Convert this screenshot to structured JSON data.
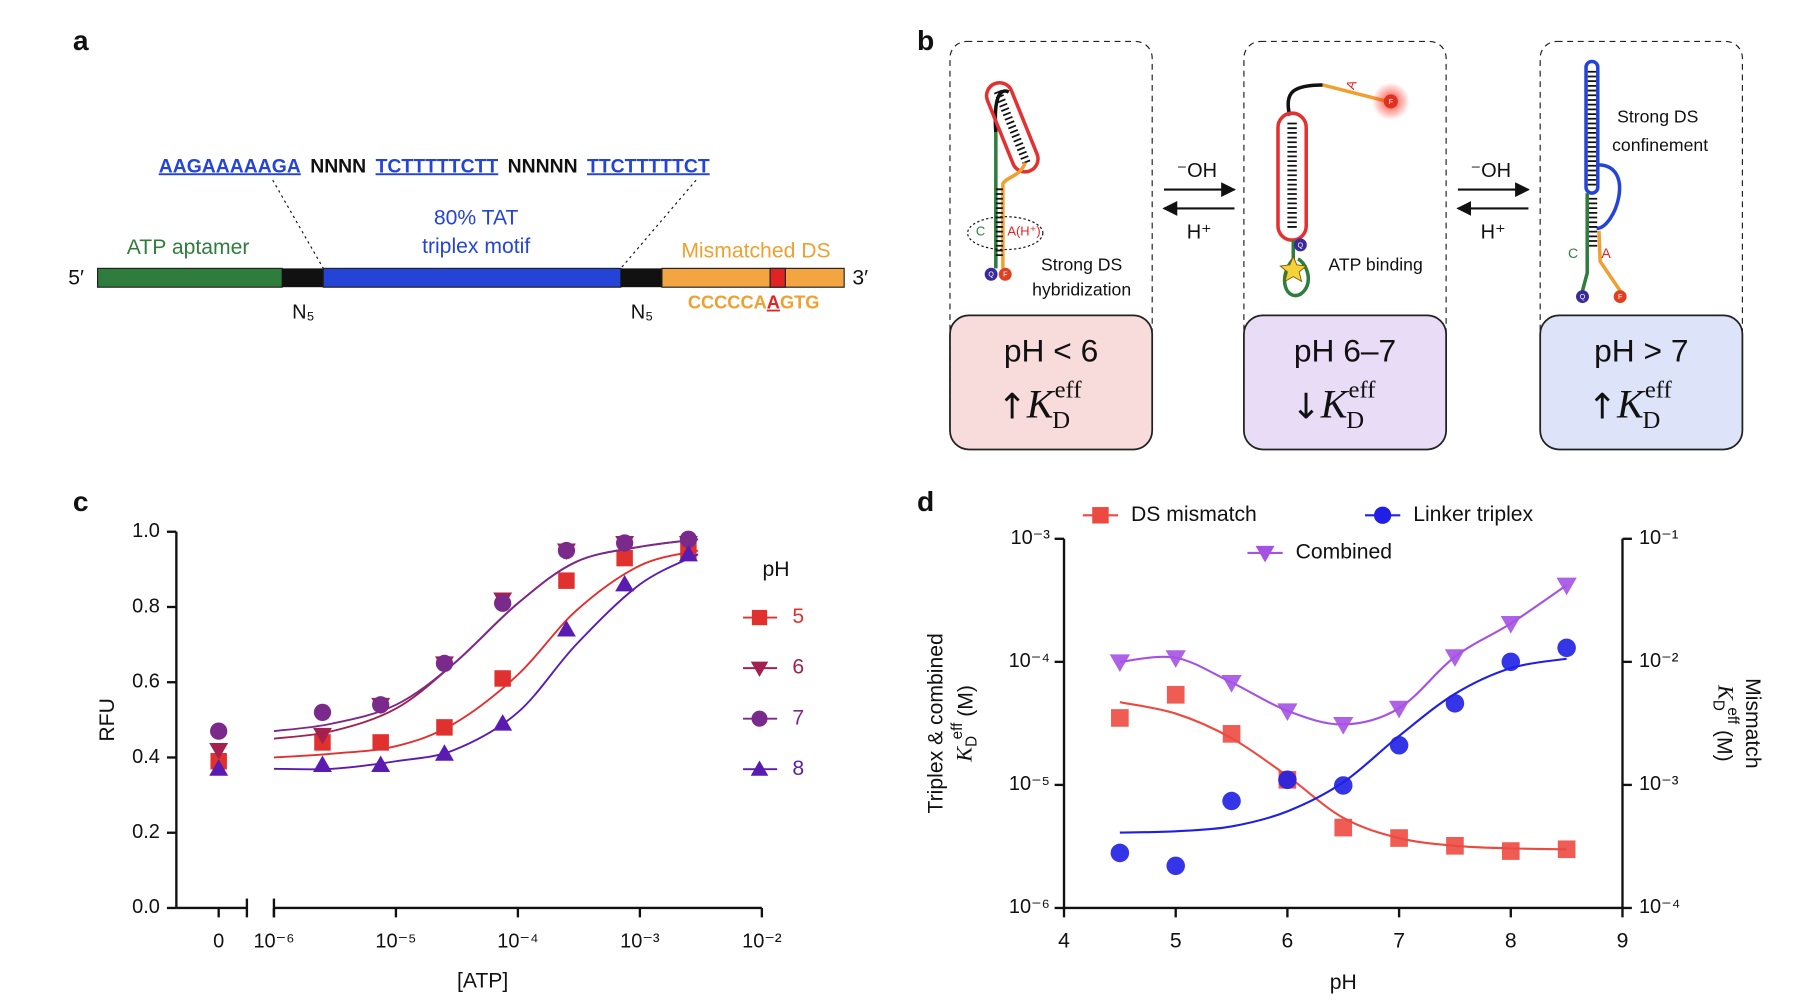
{
  "panel_labels": [
    "a",
    "b",
    "c",
    "d"
  ],
  "panel_a": {
    "sequence": [
      {
        "text": "AAGAAAAAGA",
        "color": "#2444d8",
        "underline": true
      },
      {
        "text": "NNNN",
        "color": "#111111",
        "underline": false
      },
      {
        "text": "TCTTTTTCTT",
        "color": "#2444d8",
        "underline": true
      },
      {
        "text": "NNNNN",
        "color": "#111111",
        "underline": false
      },
      {
        "text": "TTCTTTTTCT",
        "color": "#2444d8",
        "underline": true
      }
    ],
    "five_prime": "5′",
    "three_prime": "3′",
    "aptamer": "ATP aptamer",
    "triplex": [
      "80% TAT",
      "triplex motif"
    ],
    "mismatch": "Mismatched DS",
    "linker": "N₅",
    "ds_sequence": [
      {
        "text": "CCCCCA",
        "color": "#f0a030",
        "underline": false
      },
      {
        "text": "A",
        "color": "#e02424",
        "underline": true
      },
      {
        "text": "GTG",
        "color": "#f0a030",
        "underline": false
      }
    ]
  },
  "panel_b": {
    "states": [
      {
        "ph": "pH < 6",
        "arrow": "↑",
        "color": "#f8dcdb"
      },
      {
        "ph": "pH 6–7",
        "arrow": "↓",
        "color": "#e9dcf7"
      },
      {
        "ph": "pH > 7",
        "arrow": "↑",
        "color": "#dde3f8"
      }
    ],
    "kd": {
      "symbol": "K",
      "sub": "D",
      "sup": "eff"
    },
    "base": "⁻OH",
    "acid": "H⁺",
    "quencher": "Q",
    "fluorophore": "F",
    "notes": {
      "c": "C",
      "ah": "A(H⁺)",
      "a": "A",
      "hybridization": [
        "Strong DS",
        "hybridization"
      ],
      "binding": "ATP binding",
      "confinement": [
        "Strong DS",
        "confinement"
      ]
    }
  },
  "chart_data": [
    {
      "type": "scatter",
      "xlabel": "[ATP]",
      "ylabel": "RFU",
      "xscale": "log",
      "xlim": [
        1e-06,
        0.01
      ],
      "xticks": [
        0,
        {
          "value": 1e-06,
          "label": "10⁻⁶"
        },
        {
          "value": 1e-05,
          "label": "10⁻⁵"
        },
        {
          "value": 0.0001,
          "label": "10⁻⁴"
        },
        {
          "value": 0.001,
          "label": "10⁻³"
        },
        {
          "value": 0.01,
          "label": "10⁻²"
        }
      ],
      "ylim": [
        0,
        1
      ],
      "yticks": [
        {
          "value": 0,
          "label": "0.0"
        },
        0.2,
        0.4,
        0.6,
        0.8,
        {
          "value": 1,
          "label": "1.0"
        }
      ],
      "legend_title": "pH",
      "x": [
        0,
        2.5e-06,
        7.5e-06,
        2.5e-05,
        7.5e-05,
        0.00025,
        0.00075,
        0.0025
      ],
      "fit_x": [
        1e-06,
        3e-06,
        1e-05,
        3e-05,
        0.0001,
        0.0003,
        0.001,
        0.003
      ],
      "series": [
        {
          "name": "5",
          "color": "#e0312f",
          "marker": "square",
          "values": [
            0.39,
            0.44,
            0.44,
            0.48,
            0.61,
            0.87,
            0.93,
            0.95
          ],
          "fit": [
            0.4,
            0.41,
            0.43,
            0.49,
            0.62,
            0.79,
            0.91,
            0.95
          ]
        },
        {
          "name": "6",
          "color": "#a3204f",
          "marker": "triangle-down",
          "values": [
            0.42,
            0.46,
            0.54,
            0.65,
            0.82,
            0.95,
            0.97,
            0.97
          ],
          "fit": [
            0.45,
            0.47,
            0.53,
            0.65,
            0.81,
            0.92,
            0.96,
            0.98
          ]
        },
        {
          "name": "7",
          "color": "#7a2a8a",
          "marker": "circle",
          "values": [
            0.47,
            0.52,
            0.54,
            0.65,
            0.81,
            0.95,
            0.97,
            0.98
          ],
          "fit": [
            0.47,
            0.49,
            0.54,
            0.65,
            0.81,
            0.92,
            0.96,
            0.98
          ]
        },
        {
          "name": "8",
          "color": "#5a1cb0",
          "marker": "triangle-up",
          "values": [
            0.37,
            0.38,
            0.38,
            0.41,
            0.49,
            0.74,
            0.86,
            0.94
          ],
          "fit": [
            0.37,
            0.37,
            0.39,
            0.42,
            0.52,
            0.7,
            0.86,
            0.94
          ]
        }
      ]
    },
    {
      "type": "scatter",
      "xlabel": "pH",
      "xlim": [
        4,
        9
      ],
      "xticks": [
        4,
        5,
        6,
        7,
        8,
        9
      ],
      "yscale": "log",
      "ylim": [
        1e-06,
        0.001
      ],
      "yticks": [
        {
          "value": 1e-06,
          "label": "10⁻⁶"
        },
        {
          "value": 1e-05,
          "label": "10⁻⁵"
        },
        {
          "value": 0.0001,
          "label": "10⁻⁴"
        },
        {
          "value": 0.001,
          "label": "10⁻³"
        }
      ],
      "y2lim": [
        0.0001,
        0.1
      ],
      "y2ticks": [
        {
          "value": 0.0001,
          "label": "10⁻⁴"
        },
        {
          "value": 0.001,
          "label": "10⁻³"
        },
        {
          "value": 0.01,
          "label": "10⁻²"
        },
        {
          "value": 0.1,
          "label": "10⁻¹"
        }
      ],
      "ylabel": "Triplex & combined",
      "y2label": "Mismatch",
      "kd_label": {
        "symbol": "K",
        "sub": "D",
        "sup": "eff",
        "unit": " (M)"
      },
      "x": [
        4.5,
        5,
        5.5,
        6,
        6.5,
        7,
        7.5,
        8,
        8.5
      ],
      "series": [
        {
          "name": "DS mismatch",
          "color": "#ec4a40",
          "marker": "square",
          "axis": "y2",
          "values": [
            0.0035,
            0.0054,
            0.0026,
            0.0011,
            0.00045,
            0.00037,
            0.00032,
            0.00029,
            0.0003
          ],
          "fit": [
            0.0047,
            0.0038,
            0.0024,
            0.00118,
            0.00054,
            0.00037,
            0.00032,
            0.000305,
            0.0003
          ]
        },
        {
          "name": "Linker triplex",
          "color": "#1f1fe6",
          "marker": "circle",
          "values": [
            2.8e-06,
            2.2e-06,
            7.4e-06,
            1.1e-05,
            9.9e-06,
            2.1e-05,
            4.6e-05,
            0.0001,
            0.00013
          ],
          "fit": [
            4.1e-06,
            4.2e-06,
            4.6e-06,
            6.1e-06,
            1.05e-05,
            2.5e-05,
            5.5e-05,
            8.9e-05,
            0.000106
          ]
        },
        {
          "name": "Combined",
          "color": "#a552e4",
          "marker": "triangle-down",
          "values": [
            0.0001,
            0.000108,
            6.8e-05,
            4e-05,
            3.1e-05,
            4.2e-05,
            0.00011,
            0.000205,
            0.00042
          ],
          "line": true
        }
      ]
    }
  ]
}
